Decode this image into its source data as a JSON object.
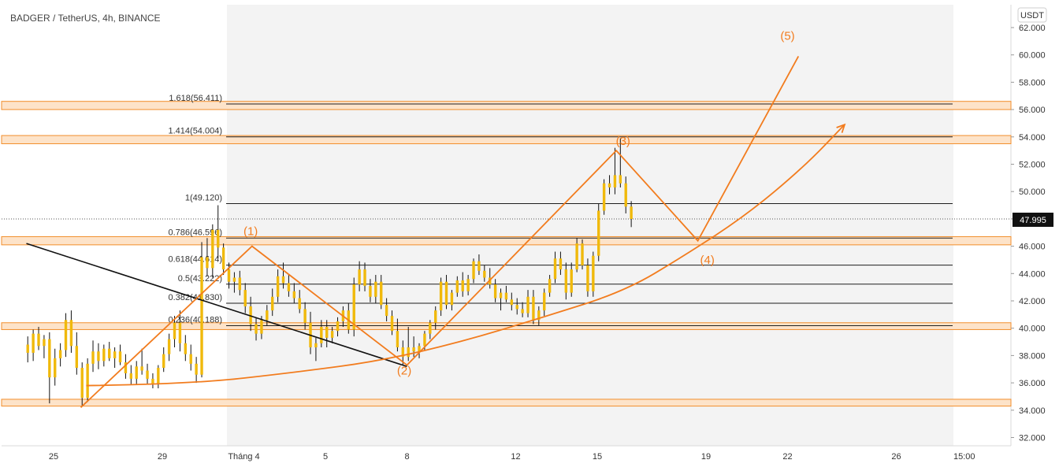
{
  "header": {
    "title": "BADGER / TetherUS, 4h, BINANCE"
  },
  "price_axis": {
    "unit_label": "USDT",
    "current_price_label": "47.995"
  },
  "colors": {
    "background": "#ffffff",
    "selection_shade": "#f3f3f3",
    "candle_body": "#f0b90b",
    "candle_wick": "#111111",
    "wave": "#f27c1e",
    "fib_line": "#1e1e1e",
    "zone_fill": "#fde3c9",
    "zone_border": "#f28e2b",
    "trendline": "#111111",
    "price_tag_bg": "#111111",
    "price_tag_text": "#ffffff"
  },
  "chart_data": {
    "type": "candlestick",
    "symbol": "BADGER / TetherUS, 4h, BINANCE",
    "ylim": [
      31.2,
      63.0
    ],
    "y_ticks": [
      "62.000",
      "60.000",
      "58.000",
      "56.000",
      "54.000",
      "52.000",
      "50.000",
      "48.000",
      "46.000",
      "44.000",
      "42.000",
      "40.000",
      "38.000",
      "36.000",
      "34.000",
      "32.000"
    ],
    "x_ticks": [
      "25",
      "29",
      "Tháng 4",
      "5",
      "8",
      "12",
      "15",
      "19",
      "22",
      "26",
      "15:00"
    ],
    "x_tick_days": [
      0,
      4,
      7,
      10,
      13,
      17,
      20,
      24,
      27,
      31,
      33.5
    ],
    "last_price": 47.995,
    "fib_levels": [
      {
        "label": "1.618(56.411)",
        "value": 56.411
      },
      {
        "label": "1.414(54.004)",
        "value": 54.004
      },
      {
        "label": "1(49.120)",
        "value": 49.12
      },
      {
        "label": "0.786(46.596)",
        "value": 46.596
      },
      {
        "label": "0.618(44.614)",
        "value": 44.614
      },
      {
        "label": "0.5(43.222)",
        "value": 43.222
      },
      {
        "label": "0.382(41.830)",
        "value": 41.83
      },
      {
        "label": "0.236(40.188)",
        "value": 40.188
      }
    ],
    "zones": [
      {
        "low": 56.0,
        "high": 56.6
      },
      {
        "low": 53.5,
        "high": 54.1
      },
      {
        "low": 46.1,
        "high": 46.7
      },
      {
        "low": 39.9,
        "high": 40.4
      },
      {
        "low": 34.3,
        "high": 34.8
      }
    ],
    "waves": [
      {
        "label": "(1)",
        "day": 7.25,
        "price": 46.8
      },
      {
        "label": "(2)",
        "day": 12.9,
        "price": 36.6
      },
      {
        "label": "(3)",
        "day": 20.95,
        "price": 53.4
      },
      {
        "label": "(4)",
        "day": 24.05,
        "price": 44.7
      },
      {
        "label": "(5)",
        "day": 27.0,
        "price": 61.1
      }
    ],
    "wave_path": [
      [
        1.0,
        34.2
      ],
      [
        7.3,
        46.0
      ],
      [
        13.0,
        37.3
      ],
      [
        20.7,
        53.0
      ],
      [
        23.7,
        46.4
      ],
      [
        27.4,
        59.9
      ]
    ],
    "curve_path": [
      [
        1.2,
        35.8
      ],
      [
        5.0,
        35.9
      ],
      [
        9.0,
        36.8
      ],
      [
        12.0,
        37.6
      ],
      [
        15.0,
        39.0
      ],
      [
        18.0,
        40.8
      ],
      [
        21.0,
        42.7
      ],
      [
        23.2,
        45.3
      ],
      [
        25.5,
        48.3
      ],
      [
        27.6,
        51.8
      ],
      [
        29.1,
        54.9
      ]
    ],
    "trendline": [
      [
        -1.0,
        46.2
      ],
      [
        13.0,
        37.2
      ]
    ],
    "candles": [
      [
        -0.95,
        38.8,
        39.4,
        37.5,
        38.2
      ],
      [
        -0.75,
        38.2,
        39.9,
        37.6,
        39.6
      ],
      [
        -0.55,
        39.6,
        40.1,
        38.4,
        38.7
      ],
      [
        -0.35,
        38.7,
        39.5,
        37.8,
        39.2
      ],
      [
        -0.15,
        39.2,
        39.7,
        34.5,
        36.4
      ],
      [
        0.05,
        36.4,
        38.5,
        35.8,
        37.8
      ],
      [
        0.25,
        37.8,
        38.9,
        37.2,
        38.4
      ],
      [
        0.45,
        38.4,
        41.1,
        37.9,
        40.6
      ],
      [
        0.65,
        40.6,
        41.3,
        38.2,
        38.7
      ],
      [
        0.85,
        38.7,
        39.7,
        36.6,
        37.1
      ],
      [
        1.05,
        37.1,
        37.5,
        34.3,
        34.9
      ],
      [
        1.25,
        34.9,
        37.8,
        34.6,
        37.4
      ],
      [
        1.45,
        37.4,
        39.1,
        36.8,
        38.3
      ],
      [
        1.65,
        38.3,
        38.9,
        37.0,
        37.6
      ],
      [
        1.85,
        37.6,
        38.8,
        37.2,
        38.5
      ],
      [
        2.05,
        38.5,
        39.0,
        37.6,
        37.8
      ],
      [
        2.25,
        37.8,
        38.6,
        37.1,
        38.3
      ],
      [
        2.45,
        38.3,
        38.8,
        37.3,
        37.5
      ],
      [
        2.65,
        37.5,
        38.1,
        36.3,
        36.7
      ],
      [
        2.85,
        36.7,
        37.3,
        35.9,
        36.3
      ],
      [
        3.05,
        36.3,
        37.6,
        35.9,
        37.2
      ],
      [
        3.25,
        37.2,
        38.5,
        36.6,
        36.9
      ],
      [
        3.45,
        36.9,
        37.4,
        35.9,
        36.3
      ],
      [
        3.65,
        36.3,
        36.7,
        35.6,
        35.9
      ],
      [
        3.85,
        35.9,
        37.3,
        35.6,
        37.1
      ],
      [
        4.05,
        37.1,
        38.6,
        36.8,
        38.1
      ],
      [
        4.25,
        38.1,
        39.6,
        37.6,
        39.2
      ],
      [
        4.45,
        39.2,
        40.9,
        38.6,
        40.4
      ],
      [
        4.65,
        40.4,
        41.3,
        38.3,
        38.9
      ],
      [
        4.85,
        38.9,
        39.5,
        37.6,
        38.1
      ],
      [
        5.05,
        38.1,
        38.8,
        36.9,
        37.4
      ],
      [
        5.25,
        37.4,
        37.9,
        36.0,
        36.6
      ],
      [
        5.45,
        36.6,
        46.3,
        36.4,
        45.2
      ],
      [
        5.65,
        45.2,
        46.6,
        43.8,
        44.4
      ],
      [
        5.85,
        44.4,
        47.6,
        43.7,
        47.2
      ],
      [
        6.05,
        47.2,
        49.0,
        45.1,
        45.9
      ],
      [
        6.25,
        45.9,
        46.2,
        43.9,
        44.3
      ],
      [
        6.45,
        44.3,
        44.8,
        42.9,
        43.4
      ],
      [
        6.65,
        43.4,
        44.1,
        42.6,
        43.7
      ],
      [
        6.85,
        43.7,
        44.2,
        42.4,
        42.8
      ],
      [
        7.05,
        42.8,
        43.3,
        41.1,
        41.6
      ],
      [
        7.25,
        41.6,
        42.3,
        39.8,
        40.3
      ],
      [
        7.45,
        40.3,
        40.8,
        39.1,
        39.6
      ],
      [
        7.65,
        39.6,
        40.9,
        39.2,
        40.6
      ],
      [
        7.85,
        40.6,
        41.7,
        40.2,
        41.3
      ],
      [
        8.05,
        41.3,
        42.9,
        40.9,
        42.3
      ],
      [
        8.25,
        42.3,
        44.3,
        41.9,
        43.8
      ],
      [
        8.45,
        43.8,
        44.8,
        42.9,
        43.3
      ],
      [
        8.65,
        43.3,
        43.9,
        42.3,
        42.7
      ],
      [
        8.85,
        42.7,
        43.3,
        41.8,
        42.2
      ],
      [
        9.05,
        42.2,
        42.8,
        41.1,
        41.4
      ],
      [
        9.25,
        41.4,
        41.9,
        39.9,
        40.4
      ],
      [
        9.45,
        40.4,
        41.2,
        38.1,
        38.6
      ],
      [
        9.65,
        38.6,
        39.3,
        37.6,
        38.9
      ],
      [
        9.85,
        38.9,
        40.6,
        38.6,
        40.1
      ],
      [
        10.05,
        40.1,
        40.6,
        38.6,
        39.3
      ],
      [
        10.25,
        39.3,
        40.1,
        38.9,
        39.8
      ],
      [
        10.45,
        39.8,
        40.8,
        39.4,
        40.5
      ],
      [
        10.65,
        40.5,
        41.6,
        40.1,
        41.3
      ],
      [
        10.85,
        41.3,
        41.8,
        39.6,
        39.9
      ],
      [
        11.05,
        39.9,
        43.7,
        39.4,
        43.2
      ],
      [
        11.25,
        43.2,
        44.9,
        42.7,
        44.3
      ],
      [
        11.45,
        44.3,
        44.8,
        42.7,
        43.1
      ],
      [
        11.65,
        43.1,
        43.6,
        41.9,
        42.3
      ],
      [
        11.85,
        42.3,
        43.9,
        41.8,
        43.4
      ],
      [
        12.05,
        43.4,
        43.9,
        41.4,
        41.7
      ],
      [
        12.25,
        41.7,
        42.2,
        40.5,
        40.9
      ],
      [
        12.45,
        40.9,
        41.3,
        39.5,
        39.8
      ],
      [
        12.65,
        39.8,
        40.7,
        38.3,
        38.6
      ],
      [
        12.85,
        38.6,
        39.1,
        37.3,
        37.9
      ],
      [
        13.05,
        37.9,
        40.1,
        37.6,
        38.6
      ],
      [
        13.25,
        38.6,
        39.4,
        37.9,
        38.3
      ],
      [
        13.45,
        38.3,
        38.9,
        37.8,
        38.7
      ],
      [
        13.65,
        38.7,
        39.8,
        38.4,
        39.6
      ],
      [
        13.85,
        39.6,
        40.6,
        39.2,
        40.4
      ],
      [
        14.05,
        40.4,
        41.6,
        39.9,
        41.3
      ],
      [
        14.25,
        41.3,
        43.7,
        40.9,
        43.4
      ],
      [
        14.45,
        43.4,
        43.9,
        41.4,
        41.7
      ],
      [
        14.65,
        41.7,
        42.8,
        41.3,
        42.6
      ],
      [
        14.85,
        42.6,
        43.8,
        42.3,
        43.5
      ],
      [
        15.05,
        43.5,
        44.1,
        42.3,
        42.7
      ],
      [
        15.25,
        42.7,
        43.9,
        42.4,
        43.6
      ],
      [
        15.45,
        43.6,
        45.1,
        43.3,
        44.9
      ],
      [
        15.65,
        44.9,
        45.4,
        43.9,
        44.2
      ],
      [
        15.85,
        44.2,
        44.6,
        43.4,
        43.7
      ],
      [
        16.05,
        43.7,
        44.4,
        42.9,
        43.2
      ],
      [
        16.25,
        43.2,
        43.6,
        41.9,
        42.2
      ],
      [
        16.45,
        42.2,
        42.9,
        41.3,
        42.6
      ],
      [
        16.65,
        42.6,
        43.1,
        41.9,
        42.1
      ],
      [
        16.85,
        42.1,
        42.6,
        41.3,
        41.7
      ],
      [
        17.05,
        41.7,
        42.2,
        41.0,
        41.4
      ],
      [
        17.25,
        41.4,
        41.9,
        40.8,
        41.1
      ],
      [
        17.45,
        41.1,
        42.8,
        40.8,
        42.3
      ],
      [
        17.65,
        42.3,
        42.8,
        40.3,
        40.6
      ],
      [
        17.85,
        40.6,
        41.6,
        40.2,
        41.3
      ],
      [
        18.05,
        41.3,
        42.9,
        40.9,
        42.6
      ],
      [
        18.25,
        42.6,
        43.9,
        42.3,
        43.6
      ],
      [
        18.45,
        43.6,
        45.6,
        43.3,
        45.1
      ],
      [
        18.65,
        45.1,
        45.6,
        43.9,
        44.3
      ],
      [
        18.85,
        44.3,
        44.8,
        42.1,
        42.6
      ],
      [
        19.05,
        42.6,
        44.8,
        42.3,
        44.3
      ],
      [
        19.25,
        44.3,
        46.6,
        44.1,
        46.2
      ],
      [
        19.45,
        46.2,
        46.5,
        44.3,
        44.6
      ],
      [
        19.65,
        44.6,
        45.1,
        42.3,
        42.7
      ],
      [
        19.85,
        42.7,
        45.6,
        42.3,
        45.3
      ],
      [
        20.05,
        45.3,
        49.1,
        44.9,
        48.6
      ],
      [
        20.25,
        48.6,
        50.9,
        48.3,
        50.6
      ],
      [
        20.45,
        50.6,
        51.2,
        49.8,
        50.3
      ],
      [
        20.65,
        50.3,
        53.2,
        49.8,
        51.2
      ],
      [
        20.85,
        51.2,
        53.9,
        50.3,
        50.6
      ],
      [
        21.05,
        50.6,
        51.1,
        48.4,
        48.9
      ],
      [
        21.25,
        48.9,
        49.3,
        47.4,
        47.995
      ]
    ]
  }
}
